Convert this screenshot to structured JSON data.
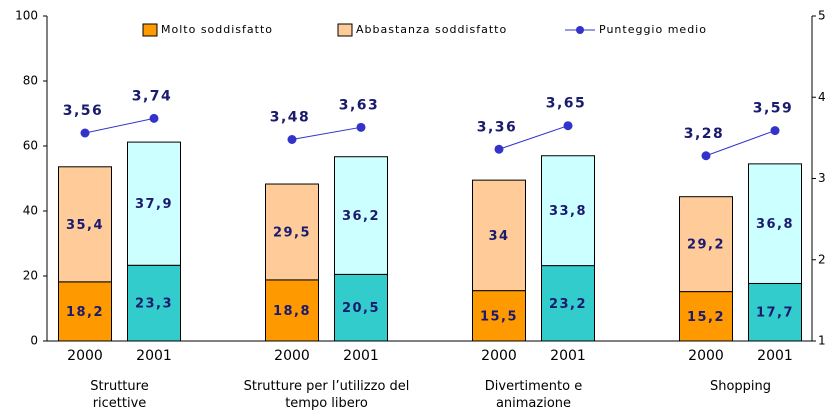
{
  "chart_data": {
    "type": "bar",
    "categories": [
      "2000",
      "2001",
      "2000",
      "2001",
      "2000",
      "2001",
      "2000",
      "2001"
    ],
    "groups": [
      "Strutture ricettive",
      "Strutture per l’utilizzo del tempo libero",
      "Divertimento e animazione",
      "Shopping"
    ],
    "series": [
      {
        "name": "Molto soddisfatto",
        "colors": [
          "#ff9900",
          "#33cccc"
        ],
        "values": [
          18.2,
          23.3,
          18.8,
          20.5,
          15.5,
          23.2,
          15.2,
          17.7
        ],
        "value_labels": [
          "18,2",
          "23,3",
          "18,8",
          "20,5",
          "15,5",
          "23,2",
          "15,2",
          "17,7"
        ]
      },
      {
        "name": "Abbastanza soddisfatto",
        "colors": [
          "#ffcc99",
          "#ccffff"
        ],
        "values": [
          35.4,
          37.9,
          29.5,
          36.2,
          34,
          33.8,
          29.2,
          36.8
        ],
        "value_labels": [
          "35,4",
          "37,9",
          "29,5",
          "36,2",
          "34",
          "33,8",
          "29,2",
          "36,8"
        ]
      },
      {
        "name": "Punteggio medio",
        "type": "line",
        "axis": "y2",
        "color": "#3333cc",
        "values": [
          3.56,
          3.74,
          3.48,
          3.63,
          3.36,
          3.65,
          3.28,
          3.59
        ],
        "value_labels": [
          "3,56",
          "3,74",
          "3,48",
          "3,63",
          "3,36",
          "3,65",
          "3,28",
          "3,59"
        ]
      }
    ],
    "ylim": [
      0,
      100
    ],
    "yticks": [
      0,
      20,
      40,
      60,
      80,
      100
    ],
    "y2lim": [
      1,
      5
    ],
    "y2ticks": [
      1,
      2,
      3,
      4,
      5
    ],
    "legend": "top"
  }
}
